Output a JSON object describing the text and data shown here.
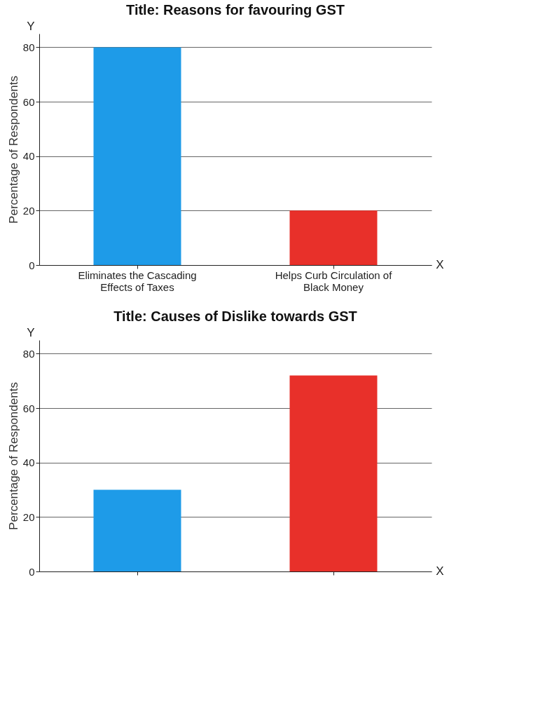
{
  "chart_data": [
    {
      "type": "bar",
      "title": "Title: Reasons for favouring GST",
      "ylabel": "Percentage of Respondents",
      "categories": [
        "Eliminates the Cascading Effects of Taxes",
        "Helps Curb Circulation of Black Money"
      ],
      "values": [
        80,
        20
      ],
      "colors": [
        "#1e9be8",
        "#e8302a"
      ],
      "ylim": [
        0,
        85
      ],
      "yticks": [
        0,
        20,
        40,
        60,
        80
      ],
      "grid": "y",
      "annotations": [
        "Y",
        "X"
      ]
    },
    {
      "type": "bar",
      "title": "Title: Causes of Dislike towards GST",
      "ylabel": "Percentage of Respondents",
      "categories": [
        null,
        null
      ],
      "values": [
        30,
        72
      ],
      "colors": [
        "#1e9be8",
        "#e8302a"
      ],
      "ylim": [
        0,
        85
      ],
      "yticks": [
        0,
        20,
        40,
        60,
        80
      ],
      "grid": "y",
      "annotations": [
        "Y",
        "X"
      ]
    }
  ]
}
